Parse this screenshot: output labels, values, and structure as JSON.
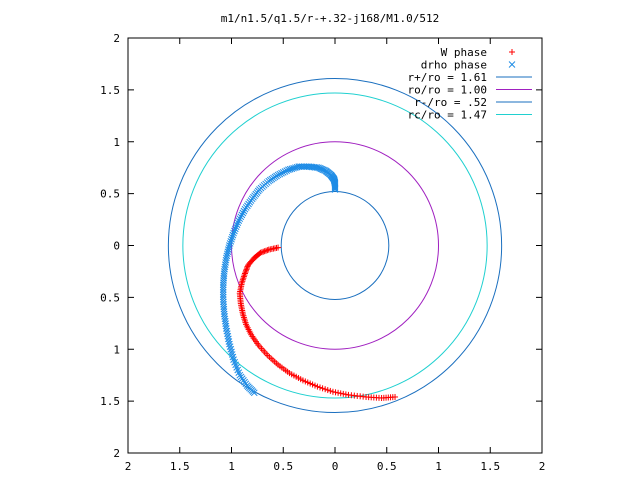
{
  "chart_data": {
    "type": "scatter",
    "title": "m1/n1.5/q1.5/r-+.32-j168/M1.0/512",
    "xlabel": "",
    "ylabel": "",
    "xlim": [
      -2,
      2
    ],
    "ylim": [
      -2,
      2
    ],
    "x_tick_labels": [
      "2",
      "1.5",
      "1",
      "0.5",
      "0",
      "0.5",
      "1",
      "1.5",
      "2"
    ],
    "y_tick_labels": [
      "2",
      "1.5",
      "1",
      "0.5",
      "0",
      "0.5",
      "1",
      "1.5",
      "2"
    ],
    "grid": false,
    "legend_position": "top-right",
    "circles": [
      {
        "name": "r+/ro = 1.61",
        "radius": 1.61,
        "color": "#1a6fbf"
      },
      {
        "name": "ro/ro = 1.00",
        "radius": 1.0,
        "color": "#a020c0"
      },
      {
        "name": "r-/ro = .52",
        "radius": 0.52,
        "color": "#1a6fbf"
      },
      {
        "name": "rc/ro = 1.47",
        "radius": 1.47,
        "color": "#20d0d0"
      }
    ],
    "series": [
      {
        "name": "W phase",
        "marker": "+",
        "color": "#ff0000",
        "points": [
          [
            -0.55,
            -0.02
          ],
          [
            -0.64,
            -0.04
          ],
          [
            -0.72,
            -0.07
          ],
          [
            -0.78,
            -0.12
          ],
          [
            -0.84,
            -0.19
          ],
          [
            -0.87,
            -0.27
          ],
          [
            -0.9,
            -0.36
          ],
          [
            -0.92,
            -0.46
          ],
          [
            -0.91,
            -0.56
          ],
          [
            -0.89,
            -0.66
          ],
          [
            -0.86,
            -0.76
          ],
          [
            -0.81,
            -0.86
          ],
          [
            -0.74,
            -0.96
          ],
          [
            -0.65,
            -1.06
          ],
          [
            -0.55,
            -1.15
          ],
          [
            -0.44,
            -1.23
          ],
          [
            -0.31,
            -1.3
          ],
          [
            -0.17,
            -1.36
          ],
          [
            -0.02,
            -1.41
          ],
          [
            0.13,
            -1.44
          ],
          [
            0.3,
            -1.46
          ],
          [
            0.45,
            -1.47
          ],
          [
            0.58,
            -1.46
          ]
        ]
      },
      {
        "name": "drho phase",
        "marker": "×",
        "color": "#1e8ce6",
        "points": [
          [
            0.0,
            0.54
          ],
          [
            0.0,
            0.6
          ],
          [
            -0.01,
            0.64
          ],
          [
            -0.04,
            0.68
          ],
          [
            -0.09,
            0.72
          ],
          [
            -0.16,
            0.75
          ],
          [
            -0.25,
            0.76
          ],
          [
            -0.35,
            0.76
          ],
          [
            -0.45,
            0.73
          ],
          [
            -0.55,
            0.68
          ],
          [
            -0.64,
            0.62
          ],
          [
            -0.73,
            0.54
          ],
          [
            -0.8,
            0.45
          ],
          [
            -0.87,
            0.35
          ],
          [
            -0.93,
            0.24
          ],
          [
            -0.98,
            0.12
          ],
          [
            -1.02,
            0.0
          ],
          [
            -1.05,
            -0.12
          ],
          [
            -1.07,
            -0.25
          ],
          [
            -1.08,
            -0.38
          ],
          [
            -1.08,
            -0.52
          ],
          [
            -1.07,
            -0.66
          ],
          [
            -1.05,
            -0.8
          ],
          [
            -1.02,
            -0.95
          ],
          [
            -0.98,
            -1.1
          ],
          [
            -0.92,
            -1.25
          ],
          [
            -0.85,
            -1.35
          ],
          [
            -0.78,
            -1.42
          ]
        ]
      }
    ]
  }
}
